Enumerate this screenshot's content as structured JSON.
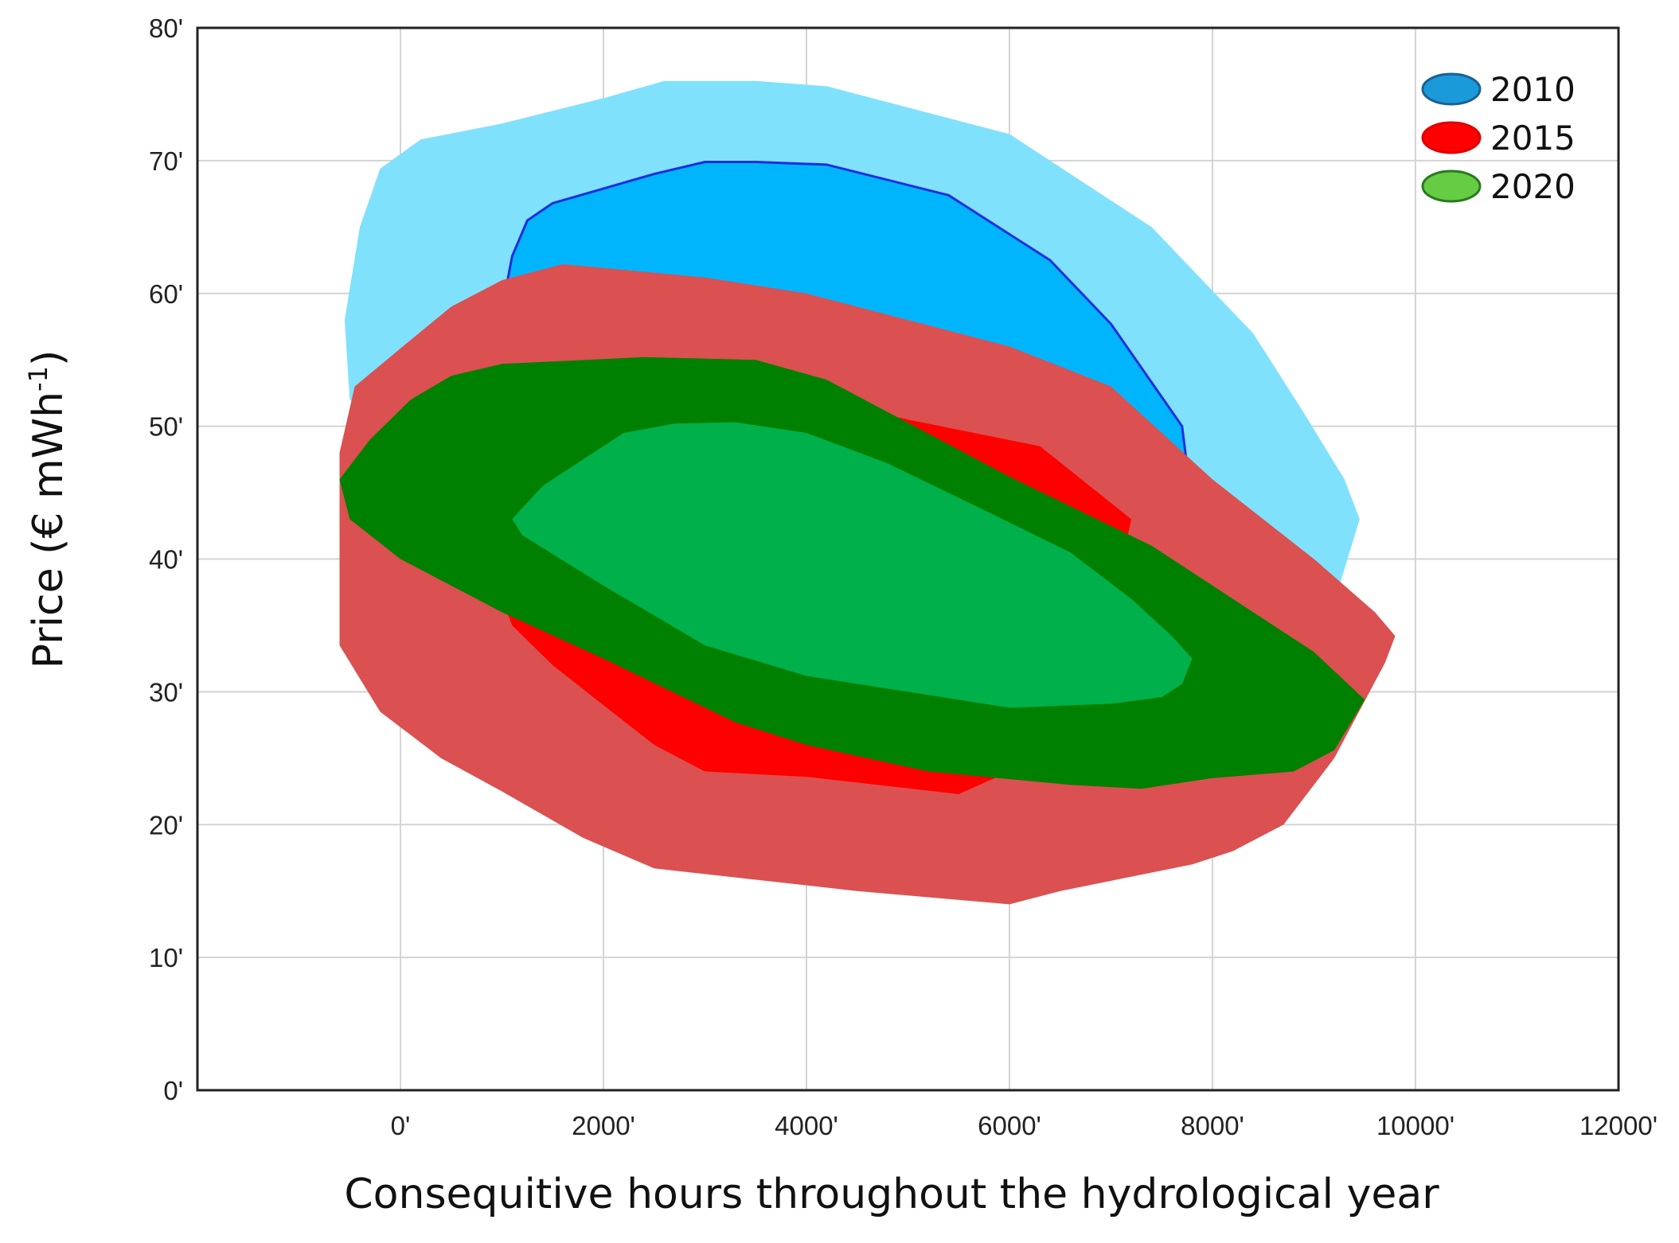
{
  "chart_data": {
    "type": "area",
    "xlabel": "Consequitive hours throughout the hydrological year",
    "ylabel_text": "Price (€ mWh",
    "ylabel_sup": "-1",
    "ylabel_close": ")",
    "xlim": [
      -2000,
      12000
    ],
    "ylim": [
      0,
      80
    ],
    "x_ticks": [
      {
        "value": 0,
        "label": "0'"
      },
      {
        "value": 2000,
        "label": "2000'"
      },
      {
        "value": 4000,
        "label": "4000'"
      },
      {
        "value": 6000,
        "label": "6000'"
      },
      {
        "value": 8000,
        "label": "8000'"
      },
      {
        "value": 10000,
        "label": "10000'"
      },
      {
        "value": 12000,
        "label": "12000'"
      }
    ],
    "y_ticks": [
      {
        "value": 0,
        "label": "0'"
      },
      {
        "value": 10,
        "label": "10'"
      },
      {
        "value": 20,
        "label": "20'"
      },
      {
        "value": 30,
        "label": "30'"
      },
      {
        "value": 40,
        "label": "40'"
      },
      {
        "value": 50,
        "label": "50'"
      },
      {
        "value": 60,
        "label": "60'"
      },
      {
        "value": 70,
        "label": "70'"
      },
      {
        "value": 80,
        "label": "80'"
      }
    ],
    "grid": true,
    "legend_position": "top-right",
    "legend": [
      {
        "label": "2010",
        "color": "#1a9ad8",
        "border": "#1a5f96"
      },
      {
        "label": "2015",
        "color": "#ff0000",
        "border": "#e00000"
      },
      {
        "label": "2020",
        "color": "#66cc44",
        "border": "#2a7a20"
      }
    ],
    "regions": [
      {
        "series": "2010",
        "band": "outer",
        "color": "#80e1fd",
        "points": [
          [
            -200,
            69.4
          ],
          [
            200,
            71.6
          ],
          [
            1000,
            72.8
          ],
          [
            2000,
            74.7
          ],
          [
            2600,
            76.0
          ],
          [
            3500,
            76.0
          ],
          [
            4200,
            75.6
          ],
          [
            6000,
            72.0
          ],
          [
            7400,
            65.0
          ],
          [
            8400,
            57.0
          ],
          [
            8900,
            51.0
          ],
          [
            9300,
            46.0
          ],
          [
            9450,
            43.0
          ],
          [
            9250,
            38.0
          ],
          [
            5000,
            32.0
          ],
          [
            1000,
            42.0
          ],
          [
            -500,
            52.0
          ],
          [
            -550,
            58.0
          ],
          [
            -400,
            65.0
          ]
        ]
      },
      {
        "series": "2010",
        "band": "inner",
        "color": "#00b5fc",
        "stroke": "#1f2ee0",
        "points": [
          [
            1050,
            60.8
          ],
          [
            1100,
            62.8
          ],
          [
            1250,
            65.5
          ],
          [
            1500,
            66.8
          ],
          [
            2500,
            69.0
          ],
          [
            3000,
            69.9
          ],
          [
            3500,
            69.9
          ],
          [
            4200,
            69.7
          ],
          [
            5400,
            67.4
          ],
          [
            6400,
            62.5
          ],
          [
            7000,
            57.7
          ],
          [
            7700,
            50.0
          ],
          [
            7750,
            47.0
          ],
          [
            6000,
            45.0
          ],
          [
            3000,
            47.0
          ],
          [
            1200,
            55.0
          ]
        ]
      },
      {
        "series": "2015",
        "band": "outer",
        "color": "#db5050",
        "points": [
          [
            -450,
            53.0
          ],
          [
            100,
            56.5
          ],
          [
            500,
            59.0
          ],
          [
            1000,
            61.0
          ],
          [
            1600,
            62.2
          ],
          [
            3000,
            61.2
          ],
          [
            4000,
            60.0
          ],
          [
            6000,
            56.0
          ],
          [
            7000,
            53.0
          ],
          [
            8000,
            46.0
          ],
          [
            9000,
            40.0
          ],
          [
            9600,
            36.0
          ],
          [
            9800,
            34.2
          ],
          [
            9700,
            32.2
          ],
          [
            9200,
            25.0
          ],
          [
            8700,
            20.0
          ],
          [
            8200,
            18.0
          ],
          [
            7800,
            17.0
          ],
          [
            6500,
            15.0
          ],
          [
            6000,
            14.0
          ],
          [
            4500,
            15.0
          ],
          [
            2500,
            16.7
          ],
          [
            1800,
            19.0
          ],
          [
            1000,
            22.5
          ],
          [
            400,
            25.0
          ],
          [
            -200,
            28.5
          ],
          [
            -600,
            33.5
          ],
          [
            -600,
            48.0
          ]
        ]
      },
      {
        "series": "2015",
        "band": "inner",
        "color": "#ff0000",
        "points": [
          [
            1000,
            37.0
          ],
          [
            1100,
            35.0
          ],
          [
            1500,
            32.0
          ],
          [
            2000,
            29.0
          ],
          [
            2500,
            26.0
          ],
          [
            3000,
            24.0
          ],
          [
            4000,
            23.6
          ],
          [
            5500,
            22.3
          ],
          [
            6000,
            24.0
          ],
          [
            7000,
            36.0
          ],
          [
            7200,
            43.0
          ],
          [
            6300,
            48.5
          ],
          [
            5000,
            50.5
          ],
          [
            3000,
            54.0
          ],
          [
            1500,
            52.0
          ],
          [
            1000,
            42.0
          ]
        ]
      },
      {
        "series": "2020",
        "band": "outer",
        "color": "#008000",
        "points": [
          [
            -600,
            46.0
          ],
          [
            -300,
            49.0
          ],
          [
            100,
            52.0
          ],
          [
            500,
            53.8
          ],
          [
            1000,
            54.7
          ],
          [
            2400,
            55.2
          ],
          [
            3500,
            55.0
          ],
          [
            4200,
            53.5
          ],
          [
            6000,
            46.2
          ],
          [
            7400,
            41.0
          ],
          [
            8600,
            35.0
          ],
          [
            9000,
            33.0
          ],
          [
            9500,
            29.4
          ],
          [
            9200,
            25.6
          ],
          [
            8800,
            24.0
          ],
          [
            8000,
            23.5
          ],
          [
            7300,
            22.7
          ],
          [
            6600,
            23.0
          ],
          [
            5200,
            24.0
          ],
          [
            4000,
            26.0
          ],
          [
            3300,
            27.7
          ],
          [
            2000,
            32.5
          ],
          [
            1000,
            36.0
          ],
          [
            0,
            40.0
          ],
          [
            -500,
            43.0
          ]
        ]
      },
      {
        "series": "2020",
        "band": "inner",
        "color": "#00b04a",
        "points": [
          [
            1100,
            43.0
          ],
          [
            1400,
            45.5
          ],
          [
            1800,
            47.5
          ],
          [
            2200,
            49.5
          ],
          [
            2700,
            50.2
          ],
          [
            3300,
            50.3
          ],
          [
            4000,
            49.5
          ],
          [
            4800,
            47.2
          ],
          [
            5800,
            43.5
          ],
          [
            6600,
            40.5
          ],
          [
            7200,
            37.0
          ],
          [
            7600,
            34.2
          ],
          [
            7800,
            32.5
          ],
          [
            7700,
            30.6
          ],
          [
            7500,
            29.6
          ],
          [
            7000,
            29.1
          ],
          [
            6000,
            28.8
          ],
          [
            5000,
            30.0
          ],
          [
            4000,
            31.2
          ],
          [
            3000,
            33.5
          ],
          [
            2000,
            38.0
          ],
          [
            1200,
            41.8
          ]
        ]
      }
    ]
  }
}
